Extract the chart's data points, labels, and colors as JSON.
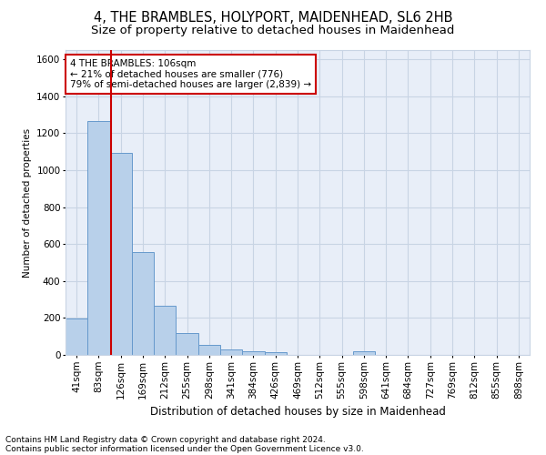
{
  "title1": "4, THE BRAMBLES, HOLYPORT, MAIDENHEAD, SL6 2HB",
  "title2": "Size of property relative to detached houses in Maidenhead",
  "xlabel": "Distribution of detached houses by size in Maidenhead",
  "ylabel": "Number of detached properties",
  "categories": [
    "41sqm",
    "83sqm",
    "126sqm",
    "169sqm",
    "212sqm",
    "255sqm",
    "298sqm",
    "341sqm",
    "384sqm",
    "426sqm",
    "469sqm",
    "512sqm",
    "555sqm",
    "598sqm",
    "641sqm",
    "684sqm",
    "727sqm",
    "769sqm",
    "812sqm",
    "855sqm",
    "898sqm"
  ],
  "values": [
    195,
    1265,
    1095,
    555,
    265,
    120,
    55,
    30,
    20,
    15,
    0,
    0,
    0,
    20,
    0,
    0,
    0,
    0,
    0,
    0,
    0
  ],
  "bar_color": "#b8d0ea",
  "bar_edge_color": "#6699cc",
  "grid_color": "#c8d4e4",
  "background_color": "#e8eef8",
  "vline_color": "#cc0000",
  "vline_pos": 1.57,
  "annotation_text": "4 THE BRAMBLES: 106sqm\n← 21% of detached houses are smaller (776)\n79% of semi-detached houses are larger (2,839) →",
  "annotation_box_facecolor": "#ffffff",
  "annotation_box_edgecolor": "#cc0000",
  "footnote1": "Contains HM Land Registry data © Crown copyright and database right 2024.",
  "footnote2": "Contains public sector information licensed under the Open Government Licence v3.0.",
  "ylim": [
    0,
    1650
  ],
  "yticks": [
    0,
    200,
    400,
    600,
    800,
    1000,
    1200,
    1400,
    1600
  ],
  "title1_fontsize": 10.5,
  "title2_fontsize": 9.5,
  "xlabel_fontsize": 8.5,
  "ylabel_fontsize": 7.5,
  "tick_fontsize": 7.5,
  "annotation_fontsize": 7.5,
  "footnote_fontsize": 6.5
}
